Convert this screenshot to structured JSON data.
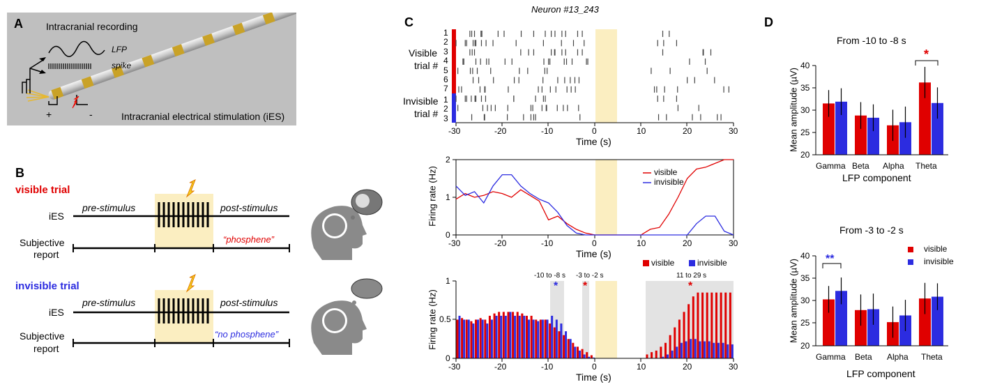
{
  "panelA": {
    "letter": "A",
    "title": "Intracranial recording",
    "lfp": "LFP",
    "spike": "spike",
    "stim": "Intracranial electrical stimulation (iES)",
    "plus": "+",
    "minus": "-"
  },
  "panelB": {
    "letter": "B",
    "visible_title": "visible trial",
    "invisible_title": "invisible trial",
    "ies": "iES",
    "pre": "pre-stimulus",
    "post": "post-stimulus",
    "subjective": "Subjective",
    "report1": "report",
    "report2": "report",
    "phosphene": "“phosphene”",
    "no_phosphene": "“no phosphene”"
  },
  "panelC": {
    "letter": "C",
    "neuron": "Neuron #13_243",
    "visible_label": "Visible",
    "visible_trial": "trial #",
    "invisible_label": "Invisible",
    "invisible_trial": "trial #",
    "visible_rows": [
      "1",
      "2",
      "3",
      "4",
      "5",
      "6",
      "7"
    ],
    "invisible_rows": [
      "1",
      "2",
      "3"
    ],
    "xlabel": "Time (s)",
    "xticks": [
      "-30",
      "-20",
      "-10",
      "0",
      "10",
      "20",
      "30"
    ],
    "fr_ylabel": "Firing rate (Hz)",
    "fr_yticks": [
      "2",
      "1",
      "0"
    ],
    "legend_visible": "visible",
    "legend_invisible": "invisible",
    "bar_yticks": [
      "1",
      "0.5",
      "0"
    ],
    "win1": "-10 to -8 s",
    "win2": "-3 to -2 s",
    "win3": "11 to 29 s",
    "star": "*"
  },
  "panelD": {
    "letter": "D",
    "top_title": "From -10 to -8 s",
    "bottom_title": "From -3 to -2 s",
    "ylabel": "Mean amplitude (µV)",
    "xlabel": "LFP component",
    "yticks": [
      "40",
      "35",
      "30",
      "25",
      "20"
    ],
    "categories": [
      "Gamma",
      "Beta",
      "Alpha",
      "Theta"
    ],
    "legend_visible": "visible",
    "legend_invisible": "invisible",
    "star1": "*",
    "star2": "**"
  },
  "chart_data": [
    {
      "type": "line",
      "x": [
        -30,
        -28,
        -26,
        -24,
        -22,
        -20,
        -18,
        -16,
        -14,
        -12,
        -10,
        -8,
        -6,
        -4,
        -2,
        0,
        2,
        4,
        6,
        8,
        10,
        12,
        14,
        16,
        18,
        20,
        22,
        24,
        26,
        28,
        30
      ],
      "series": [
        {
          "name": "visible",
          "values": [
            0.95,
            1.1,
            1.0,
            1.05,
            1.15,
            1.1,
            1.0,
            1.2,
            1.05,
            0.9,
            0.4,
            0.5,
            0.3,
            0.15,
            0.05,
            0,
            0,
            0,
            0,
            0,
            0,
            0.15,
            0.2,
            0.55,
            1.0,
            1.5,
            1.75,
            1.8,
            1.9,
            2.0,
            2.0
          ]
        },
        {
          "name": "invisible",
          "values": [
            1.3,
            1.05,
            1.15,
            0.85,
            1.3,
            1.6,
            1.6,
            1.3,
            1.1,
            0.95,
            0.85,
            0.6,
            0.25,
            0.05,
            0,
            0,
            0,
            0,
            0,
            0,
            0,
            0,
            0,
            0,
            0,
            0,
            0.3,
            0.5,
            0.5,
            0.1,
            0
          ]
        }
      ],
      "ylim": [
        0,
        2
      ],
      "xlim": [
        -30,
        30
      ],
      "xlabel": "Time (s)",
      "ylabel": "Firing rate (Hz)"
    },
    {
      "type": "bar",
      "x": [
        -30,
        -29,
        -28,
        -27,
        -26,
        -25,
        -24,
        -23,
        -22,
        -21,
        -20,
        -19,
        -18,
        -17,
        -16,
        -15,
        -14,
        -13,
        -12,
        -11,
        -10,
        -9,
        -8,
        -7,
        -6,
        -5,
        -4,
        -3,
        -2,
        -1,
        0,
        1,
        2,
        3,
        4,
        5,
        6,
        7,
        8,
        9,
        10,
        11,
        12,
        13,
        14,
        15,
        16,
        17,
        18,
        19,
        20,
        21,
        22,
        23,
        24,
        25,
        26,
        27,
        28,
        29
      ],
      "series": [
        {
          "name": "visible",
          "values": [
            0.5,
            0.52,
            0.5,
            0.48,
            0.5,
            0.52,
            0.5,
            0.55,
            0.58,
            0.6,
            0.6,
            0.6,
            0.6,
            0.6,
            0.58,
            0.55,
            0.55,
            0.5,
            0.5,
            0.5,
            0.45,
            0.4,
            0.35,
            0.3,
            0.25,
            0.2,
            0.15,
            0.12,
            0.08,
            0.04,
            0,
            0,
            0,
            0,
            0,
            0,
            0,
            0,
            0,
            0,
            0,
            0.05,
            0.08,
            0.1,
            0.15,
            0.2,
            0.3,
            0.4,
            0.5,
            0.6,
            0.7,
            0.8,
            0.85,
            0.85,
            0.85,
            0.85,
            0.85,
            0.85,
            0.85,
            0.85
          ]
        },
        {
          "name": "invisible",
          "values": [
            0.55,
            0.5,
            0.5,
            0.45,
            0.5,
            0.5,
            0.45,
            0.5,
            0.55,
            0.55,
            0.55,
            0.6,
            0.55,
            0.55,
            0.55,
            0.5,
            0.5,
            0.48,
            0.5,
            0.5,
            0.55,
            0.5,
            0.45,
            0.35,
            0.25,
            0.15,
            0.1,
            0.05,
            0.02,
            0.01,
            0,
            0,
            0,
            0,
            0,
            0,
            0,
            0,
            0,
            0,
            0,
            0,
            0,
            0,
            0.02,
            0.05,
            0.1,
            0.15,
            0.2,
            0.22,
            0.25,
            0.25,
            0.22,
            0.22,
            0.22,
            0.2,
            0.2,
            0.2,
            0.18,
            0.18
          ]
        }
      ],
      "ylim": [
        0,
        1
      ],
      "xlabel": "Time (s)",
      "ylabel": "Firing rate (Hz)"
    },
    {
      "type": "bar",
      "title": "From -10 to -8 s",
      "categories": [
        "Gamma",
        "Beta",
        "Alpha",
        "Theta"
      ],
      "series": [
        {
          "name": "visible",
          "values": [
            31.5,
            28.8,
            26.6,
            36.2
          ],
          "err": [
            3,
            3,
            3.5,
            3.5
          ]
        },
        {
          "name": "invisible",
          "values": [
            31.9,
            28.3,
            27.3,
            31.6
          ],
          "err": [
            3,
            3,
            3.5,
            3.5
          ]
        }
      ],
      "ylim": [
        20,
        40
      ],
      "xlabel": "LFP component",
      "ylabel": "Mean amplitude (µV)"
    },
    {
      "type": "bar",
      "title": "From -3 to -2 s",
      "categories": [
        "Gamma",
        "Beta",
        "Alpha",
        "Theta"
      ],
      "series": [
        {
          "name": "visible",
          "values": [
            30.4,
            28.0,
            25.3,
            30.6
          ],
          "err": [
            3,
            3.5,
            3.5,
            3.5
          ]
        },
        {
          "name": "invisible",
          "values": [
            32.3,
            28.2,
            26.8,
            31.0
          ],
          "err": [
            3,
            3.5,
            3.5,
            3
          ]
        }
      ],
      "ylim": [
        20,
        40
      ],
      "xlabel": "LFP component",
      "ylabel": "Mean amplitude (µV)"
    }
  ]
}
